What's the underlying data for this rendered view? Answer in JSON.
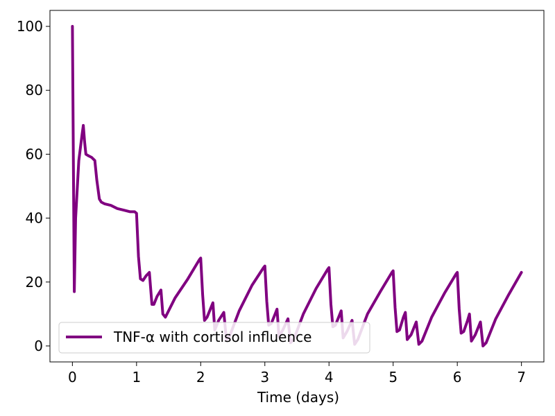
{
  "chart_data": {
    "type": "line",
    "title": "",
    "xlabel": "Time (days)",
    "ylabel": "",
    "xlim": [
      -0.35,
      7.35
    ],
    "ylim": [
      -5,
      105
    ],
    "xticks": [
      0,
      1,
      2,
      3,
      4,
      5,
      6,
      7
    ],
    "yticks": [
      0,
      20,
      40,
      60,
      80,
      100
    ],
    "grid": false,
    "legend_position": "lower-left",
    "series": [
      {
        "name": "TNF-α with cortisol influence",
        "color": "#800080",
        "x": [
          0,
          0.03,
          0.05,
          0.1,
          0.15,
          0.17,
          0.19,
          0.21,
          0.25,
          0.3,
          0.35,
          0.38,
          0.42,
          0.45,
          0.5,
          0.6,
          0.7,
          0.8,
          0.9,
          0.97,
          1.0,
          1.03,
          1.06,
          1.1,
          1.15,
          1.2,
          1.24,
          1.27,
          1.32,
          1.38,
          1.41,
          1.45,
          1.6,
          1.8,
          1.98,
          2.0,
          2.03,
          2.06,
          2.1,
          2.16,
          2.19,
          2.22,
          2.28,
          2.36,
          2.4,
          2.45,
          2.6,
          2.8,
          2.98,
          3.0,
          3.03,
          3.06,
          3.1,
          3.16,
          3.19,
          3.22,
          3.28,
          3.36,
          3.4,
          3.45,
          3.6,
          3.8,
          3.98,
          4.0,
          4.03,
          4.06,
          4.1,
          4.16,
          4.19,
          4.22,
          4.28,
          4.36,
          4.4,
          4.45,
          4.6,
          4.8,
          4.98,
          5.0,
          5.03,
          5.06,
          5.1,
          5.16,
          5.19,
          5.22,
          5.28,
          5.36,
          5.4,
          5.45,
          5.6,
          5.8,
          5.98,
          6.0,
          6.03,
          6.06,
          6.1,
          6.16,
          6.19,
          6.22,
          6.28,
          6.36,
          6.4,
          6.45,
          6.6,
          6.8,
          7.0
        ],
        "y": [
          100,
          17,
          40,
          58,
          66,
          69,
          64,
          60,
          59.5,
          59,
          58,
          52,
          46,
          45,
          44.5,
          44,
          43,
          42.5,
          42,
          42,
          41.5,
          28,
          21,
          20.5,
          22,
          23,
          13,
          13,
          15.5,
          17.5,
          10,
          9,
          15,
          21,
          27,
          27.5,
          16,
          8,
          9,
          12,
          13.5,
          5,
          8,
          10.5,
          2,
          3,
          11,
          19,
          24.5,
          25,
          14,
          6.5,
          7,
          10,
          11.5,
          3,
          5,
          8.5,
          1,
          2,
          10,
          18,
          24,
          24.5,
          13,
          6,
          6.5,
          9.5,
          11,
          2.5,
          4.5,
          8,
          0.5,
          2,
          10,
          17,
          23,
          23.5,
          12,
          4.5,
          5,
          9,
          10.5,
          2,
          3.5,
          7.5,
          0.5,
          1.5,
          9,
          16.5,
          22.5,
          23,
          11.5,
          4,
          4.5,
          8,
          10,
          1.5,
          3.5,
          7.5,
          0,
          1,
          8.5,
          16,
          23
        ]
      }
    ]
  }
}
